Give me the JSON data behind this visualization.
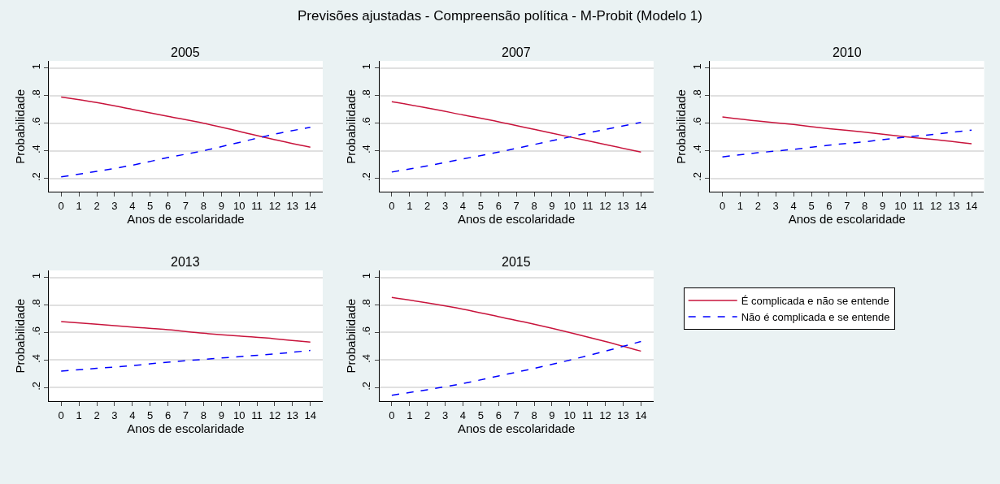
{
  "chart_data": [
    {
      "type": "other",
      "title": "Previsões ajustadas - Compreensão política - M-Probit (Modelo 1)"
    },
    {
      "type": "line",
      "title": "2005",
      "xlabel": "Anos de escolaridade",
      "ylabel": "Probabilidade",
      "x": [
        0,
        2,
        4,
        6,
        8,
        10,
        12,
        14
      ],
      "xlim": [
        -0.7,
        14.7
      ],
      "xticks": [
        0,
        1,
        2,
        3,
        4,
        5,
        6,
        7,
        8,
        9,
        10,
        11,
        12,
        13,
        14
      ],
      "ylim": [
        0.1,
        1.05
      ],
      "yticks": [
        {
          "value": 0.2,
          "label": ".2"
        },
        {
          "value": 0.4,
          "label": ".4"
        },
        {
          "value": 0.6,
          "label": ".6"
        },
        {
          "value": 0.8,
          "label": ".8"
        },
        1
      ],
      "grid": "y",
      "legend": false,
      "series": [
        {
          "color": "#c8143c",
          "line_style": "solid",
          "values": [
            0.79,
            0.75,
            0.7,
            0.65,
            0.6,
            0.54,
            0.48,
            0.425
          ]
        },
        {
          "color": "#0000ff",
          "line_style": "dashed",
          "values": [
            0.21,
            0.25,
            0.295,
            0.35,
            0.4,
            0.46,
            0.52,
            0.57
          ]
        }
      ]
    },
    {
      "type": "line",
      "title": "2007",
      "xlabel": "Anos de escolaridade",
      "ylabel": "Probabilidade",
      "x": [
        0,
        2,
        4,
        6,
        8,
        10,
        12,
        14
      ],
      "xlim": [
        -0.7,
        14.7
      ],
      "xticks": [
        0,
        1,
        2,
        3,
        4,
        5,
        6,
        7,
        8,
        9,
        10,
        11,
        12,
        13,
        14
      ],
      "ylim": [
        0.1,
        1.05
      ],
      "yticks": [
        {
          "value": 0.2,
          "label": ".2"
        },
        {
          "value": 0.4,
          "label": ".4"
        },
        {
          "value": 0.6,
          "label": ".6"
        },
        {
          "value": 0.8,
          "label": ".8"
        },
        1
      ],
      "grid": "y",
      "legend": false,
      "series": [
        {
          "color": "#c8143c",
          "line_style": "solid",
          "values": [
            0.755,
            0.71,
            0.66,
            0.61,
            0.555,
            0.5,
            0.445,
            0.39
          ]
        },
        {
          "color": "#0000ff",
          "line_style": "dashed",
          "values": [
            0.245,
            0.29,
            0.34,
            0.39,
            0.445,
            0.5,
            0.555,
            0.605
          ]
        }
      ]
    },
    {
      "type": "line",
      "title": "2010",
      "xlabel": "Anos de escolaridade",
      "ylabel": "Probabilidade",
      "x": [
        0,
        2,
        4,
        6,
        8,
        10,
        12,
        14
      ],
      "xlim": [
        -0.7,
        14.7
      ],
      "xticks": [
        0,
        1,
        2,
        3,
        4,
        5,
        6,
        7,
        8,
        9,
        10,
        11,
        12,
        13,
        14
      ],
      "ylim": [
        0.1,
        1.05
      ],
      "yticks": [
        {
          "value": 0.2,
          "label": ".2"
        },
        {
          "value": 0.4,
          "label": ".4"
        },
        {
          "value": 0.6,
          "label": ".6"
        },
        {
          "value": 0.8,
          "label": ".8"
        },
        1
      ],
      "grid": "y",
      "legend": false,
      "series": [
        {
          "color": "#c8143c",
          "line_style": "solid",
          "values": [
            0.645,
            0.615,
            0.59,
            0.56,
            0.535,
            0.505,
            0.48,
            0.45
          ]
        },
        {
          "color": "#0000ff",
          "line_style": "dashed",
          "values": [
            0.355,
            0.385,
            0.41,
            0.44,
            0.465,
            0.495,
            0.52,
            0.55
          ]
        }
      ]
    },
    {
      "type": "line",
      "title": "2013",
      "xlabel": "Anos de escolaridade",
      "ylabel": "Probabilidade",
      "x": [
        0,
        2,
        4,
        6,
        8,
        10,
        12,
        14
      ],
      "xlim": [
        -0.7,
        14.7
      ],
      "xticks": [
        0,
        1,
        2,
        3,
        4,
        5,
        6,
        7,
        8,
        9,
        10,
        11,
        12,
        13,
        14
      ],
      "ylim": [
        0.1,
        1.05
      ],
      "yticks": [
        {
          "value": 0.2,
          "label": ".2"
        },
        {
          "value": 0.4,
          "label": ".4"
        },
        {
          "value": 0.6,
          "label": ".6"
        },
        {
          "value": 0.8,
          "label": ".8"
        },
        1
      ],
      "grid": "y",
      "legend": false,
      "series": [
        {
          "color": "#c8143c",
          "line_style": "solid",
          "values": [
            0.68,
            0.66,
            0.64,
            0.62,
            0.595,
            0.575,
            0.555,
            0.53
          ]
        },
        {
          "color": "#0000ff",
          "line_style": "dashed",
          "values": [
            0.32,
            0.34,
            0.36,
            0.385,
            0.405,
            0.425,
            0.445,
            0.47
          ]
        }
      ]
    },
    {
      "type": "line",
      "title": "2015",
      "xlabel": "Anos de escolaridade",
      "ylabel": "Probabilidade",
      "x": [
        0,
        2,
        4,
        6,
        8,
        10,
        12,
        14
      ],
      "xlim": [
        -0.7,
        14.7
      ],
      "xticks": [
        0,
        1,
        2,
        3,
        4,
        5,
        6,
        7,
        8,
        9,
        10,
        11,
        12,
        13,
        14
      ],
      "ylim": [
        0.1,
        1.05
      ],
      "yticks": [
        {
          "value": 0.2,
          "label": ".2"
        },
        {
          "value": 0.4,
          "label": ".4"
        },
        {
          "value": 0.6,
          "label": ".6"
        },
        {
          "value": 0.8,
          "label": ".8"
        },
        1
      ],
      "grid": "y",
      "legend": "right",
      "series": [
        {
          "name": "É complicada e não se entende",
          "color": "#c8143c",
          "line_style": "solid",
          "values": [
            0.855,
            0.815,
            0.77,
            0.715,
            0.66,
            0.6,
            0.535,
            0.465
          ]
        },
        {
          "name": "Não é complicada e se entende",
          "color": "#0000ff",
          "line_style": "dashed",
          "values": [
            0.145,
            0.185,
            0.23,
            0.285,
            0.34,
            0.4,
            0.465,
            0.535
          ]
        }
      ]
    }
  ]
}
